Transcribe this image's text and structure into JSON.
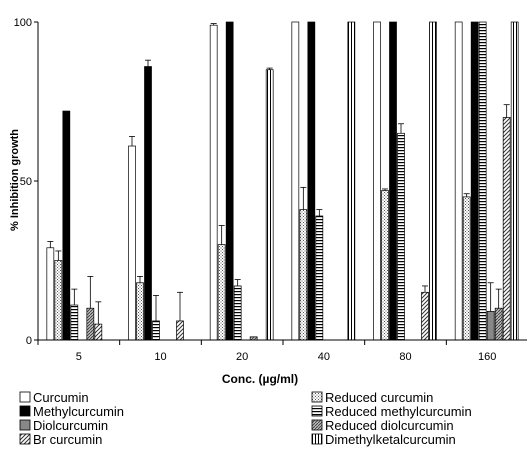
{
  "chart_data": {
    "type": "bar",
    "title": "",
    "xlabel": "Conc. (µg/ml)",
    "ylabel": "% Inhibition growth",
    "ylim": [
      0,
      100
    ],
    "yticks": [
      "0",
      "50",
      "100"
    ],
    "categories": [
      "5",
      "10",
      "20",
      "40",
      "80",
      "160"
    ],
    "grid": false,
    "legend_position": "bottom",
    "series": [
      {
        "name": "Curcumin",
        "pattern": "white",
        "values": [
          29,
          61,
          99,
          100,
          100,
          100
        ],
        "errors": [
          2,
          3,
          0.5,
          0,
          0,
          0
        ]
      },
      {
        "name": "Reduced curcumin",
        "pattern": "dots",
        "values": [
          25,
          18,
          30,
          41,
          47,
          45
        ],
        "errors": [
          3,
          2,
          6,
          7,
          0.5,
          1
        ]
      },
      {
        "name": "Methylcurcumin",
        "pattern": "black",
        "values": [
          72,
          86,
          100,
          100,
          100,
          100
        ],
        "errors": [
          0,
          2,
          0,
          0,
          0,
          0
        ]
      },
      {
        "name": "Reduced methylcurcumin",
        "pattern": "hlines",
        "values": [
          11,
          6,
          17,
          39,
          65,
          100
        ],
        "errors": [
          5,
          8,
          2,
          2,
          3,
          0
        ]
      },
      {
        "name": "Diolcurcumin",
        "pattern": "grey",
        "values": [
          0,
          0,
          0,
          0,
          0,
          9
        ],
        "errors": [
          0,
          0,
          0,
          0,
          0,
          9
        ]
      },
      {
        "name": "Reduced diolcurcumin",
        "pattern": "diag",
        "values": [
          10,
          0,
          1,
          0,
          0,
          10
        ],
        "errors": [
          10,
          0,
          0,
          0,
          0,
          6
        ]
      },
      {
        "name": "Br curcumin",
        "pattern": "hatch",
        "values": [
          5,
          6,
          0,
          0,
          15,
          70
        ],
        "errors": [
          7,
          9,
          0,
          0,
          2,
          4
        ]
      },
      {
        "name": "Dimethylketalcurcumin",
        "pattern": "vlines",
        "values": [
          0,
          0,
          85,
          100,
          100,
          100
        ],
        "errors": [
          0,
          0,
          0.5,
          0,
          0,
          0
        ]
      }
    ],
    "legend_order": [
      "Curcumin",
      "Reduced curcumin",
      "Methylcurcumin",
      "Reduced methylcurcumin",
      "Diolcurcumin",
      "Reduced diolcurcumin",
      "Br curcumin",
      "Dimethylketalcurcumin"
    ]
  }
}
